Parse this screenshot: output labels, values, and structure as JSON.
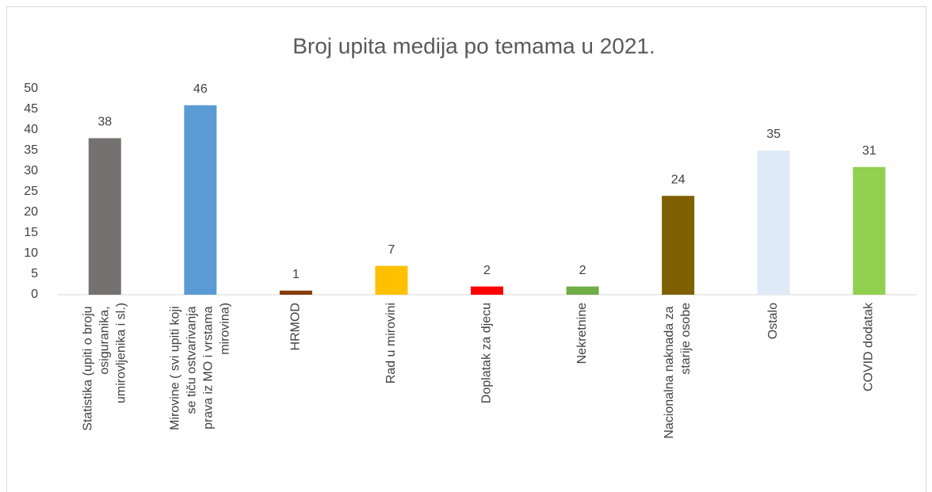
{
  "chart_data": {
    "type": "bar",
    "title": "Broj upita medija po temama u 2021.",
    "categories": [
      "Statistika (upiti o broju osiguranika, umirovljenika i sl.)",
      "Mirovine ( svi upiti koji se tiču ostvarivanja prava iz MO i vrstama mirovina)",
      "HRMOD",
      "Rad u mirovini",
      "Doplatak za djecu",
      "Nekretnine",
      "Nacionalna naknada za starije osobe",
      "Ostalo",
      "COVID dodatak"
    ],
    "values": [
      38,
      46,
      1,
      7,
      2,
      2,
      24,
      35,
      31
    ],
    "colors": [
      "#767171",
      "#5b9bd5",
      "#843c0c",
      "#ffc000",
      "#ff0000",
      "#70ad47",
      "#7f6000",
      "#deebf7",
      "#92d050"
    ],
    "ylim": [
      0,
      50
    ],
    "yticks": [
      0,
      5,
      10,
      15,
      20,
      25,
      30,
      35,
      40,
      45,
      50
    ],
    "grid": false
  }
}
